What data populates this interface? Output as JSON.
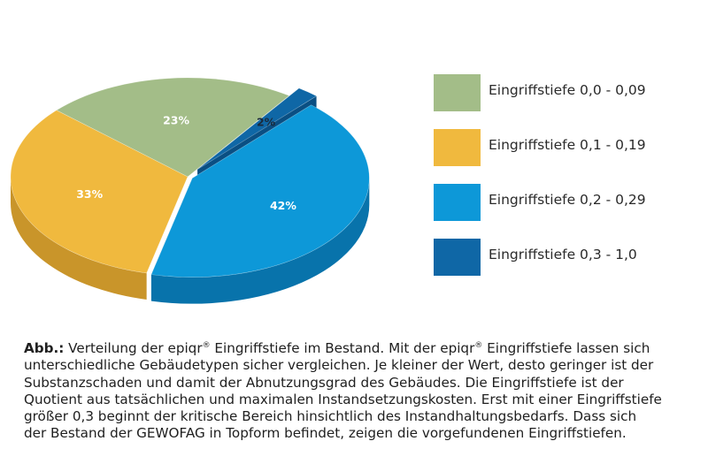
{
  "chart_data": {
    "type": "pie",
    "categories": [
      "Eingriffstiefe 0,0 - 0,09",
      "Eingriffstiefe 0,1 - 0,19",
      "Eingriffstiefe 0,2 - 0,29",
      "Eingriffstiefe 0,3 - 1,0"
    ],
    "values": [
      23,
      33,
      42,
      2
    ],
    "labels": [
      "23%",
      "33%",
      "42%",
      "2%"
    ],
    "colors": [
      "#a3bd88",
      "#f0b93e",
      "#0d98d8",
      "#0f67a6"
    ],
    "side_colors": [
      "#7f9a66",
      "#c9952a",
      "#0873ab",
      "#0a4f83"
    ],
    "exploded": [
      "Eingriffstiefe 0,3 - 1,0"
    ],
    "legend_position": "right",
    "style": "3d"
  },
  "legend": {
    "items": [
      {
        "label": "Eingriffstiefe 0,0 - 0,09",
        "color": "#a3bd88"
      },
      {
        "label": "Eingriffstiefe 0,1 - 0,19",
        "color": "#f0b93e"
      },
      {
        "label": "Eingriffstiefe 0,2 - 0,29",
        "color": "#0d98d8"
      },
      {
        "label": "Eingriffstiefe 0,3 - 1,0",
        "color": "#0f67a6"
      }
    ]
  },
  "caption": {
    "label": "Abb.:",
    "line1a": " Verteilung der epiqr",
    "reg": "®",
    "line1b": " Eingriffstiefe im Bestand. Mit der epiqr",
    "line1c": " Eingriffstiefe lassen sich",
    "line2": "unterschiedliche Gebäudetypen sicher vergleichen. Je kleiner der Wert, desto geringer ist der",
    "line3": "Substanzschaden und damit der Abnutzungsgrad des Gebäudes. Die Eingriffstiefe ist der",
    "line4": "Quotient aus tatsächlichen und maximalen Instandsetzungskosten. Erst mit einer Eingriffstiefe",
    "line5": "größer 0,3 beginnt der kritische Bereich hinsichtlich des Instandhaltungsbedarfs. Dass sich",
    "line6": "der Bestand der GEWOFAG in Topform befindet, zeigen die vorgefundenen Eingriffstiefen."
  }
}
